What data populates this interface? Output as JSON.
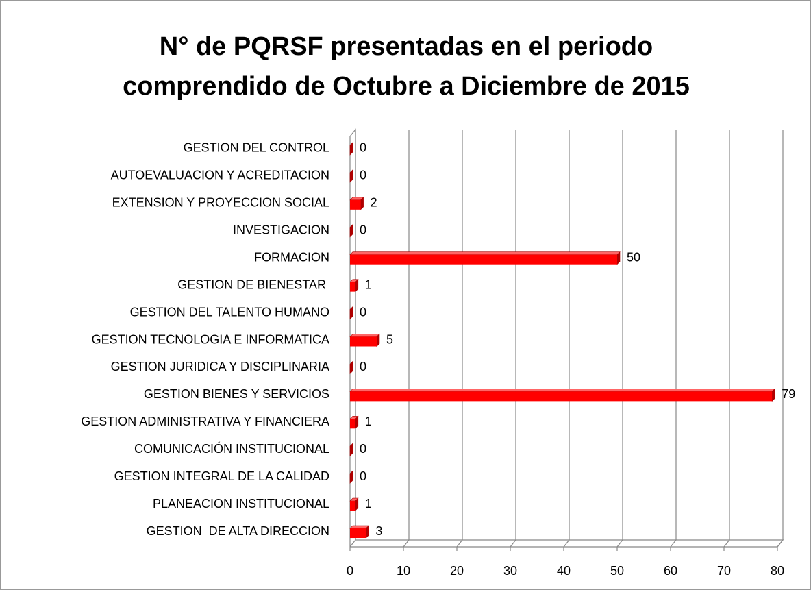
{
  "chart_data": {
    "type": "bar",
    "orientation": "horizontal",
    "title": "N° de PQRSF presentadas en el periodo comprendido de Octubre a Diciembre de 2015",
    "categories": [
      "GESTION DEL CONTROL",
      "AUTOEVALUACION Y ACREDITACION",
      "EXTENSION Y PROYECCION SOCIAL",
      "INVESTIGACION",
      "FORMACION",
      "GESTION DE BIENESTAR ",
      "GESTION DEL TALENTO HUMANO",
      "GESTION TECNOLOGIA E INFORMATICA",
      "GESTION JURIDICA Y DISCIPLINARIA",
      "GESTION BIENES Y SERVICIOS",
      "GESTION ADMINISTRATIVA Y FINANCIERA",
      "COMUNICACIÓN INSTITUCIONAL",
      "GESTION INTEGRAL DE LA CALIDAD",
      "PLANEACION INSTITUCIONAL",
      "GESTION  DE ALTA DIRECCION"
    ],
    "values": [
      0,
      0,
      2,
      0,
      50,
      1,
      0,
      5,
      0,
      79,
      1,
      0,
      0,
      1,
      3
    ],
    "color": "#ff0000",
    "xlim": [
      0,
      80
    ],
    "xticks": [
      0,
      10,
      20,
      30,
      40,
      50,
      60,
      70,
      80
    ],
    "grid": true
  }
}
